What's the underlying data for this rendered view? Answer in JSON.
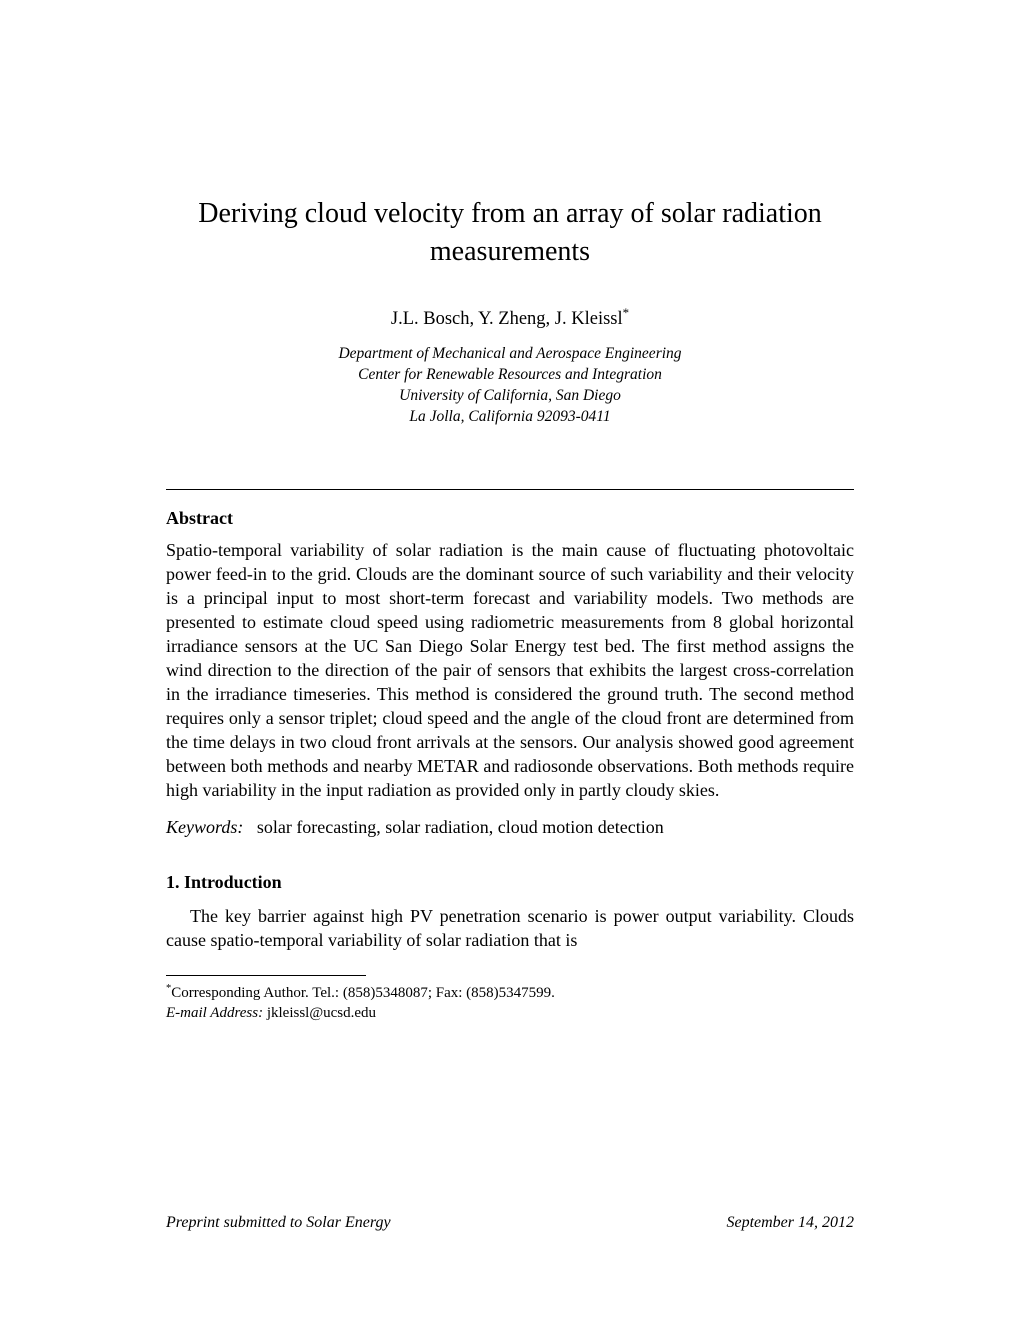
{
  "title": "Deriving cloud velocity from an array of solar radiation measurements",
  "authors": "J.L. Bosch, Y. Zheng, J. Kleissl",
  "author_marker": "*",
  "affiliation_lines": [
    "Department of Mechanical and Aerospace Engineering",
    "Center for Renewable Resources and Integration",
    "University of California, San Diego",
    "La Jolla, California 92093-0411"
  ],
  "abstract_heading": "Abstract",
  "abstract_text": "Spatio-temporal variability of solar radiation is the main cause of fluctuating photovoltaic power feed-in to the grid. Clouds are the dominant source of such variability and their velocity is a principal input to most short-term forecast and variability models. Two methods are presented to estimate cloud speed using radiometric measurements from 8 global horizontal irradiance sensors at the UC San Diego Solar Energy test bed. The first method assigns the wind direction to the direction of the pair of sensors that exhibits the largest cross-correlation in the irradiance timeseries. This method is considered the ground truth. The second method requires only a sensor triplet; cloud speed and the angle of the cloud front are determined from the time delays in two cloud front arrivals at the sensors. Our analysis showed good agreement between both methods and nearby METAR and radiosonde observations. Both methods require high variability in the input radiation as provided only in partly cloudy skies.",
  "keywords_label": "Keywords:",
  "keywords_text": "solar forecasting, solar radiation, cloud motion detection",
  "section1_heading": "1.  Introduction",
  "section1_text": "The key barrier against high PV penetration scenario is power output variability. Clouds cause spatio-temporal variability of solar radiation that is",
  "footnote_marker": "*",
  "footnote_text": "Corresponding Author. Tel.: (858)5348087; Fax: (858)5347599.",
  "footnote_email_label": "E-mail Address:",
  "footnote_email": "jkleissl@ucsd.edu",
  "footer_left": "Preprint submitted to Solar Energy",
  "footer_right": "September 14, 2012"
}
